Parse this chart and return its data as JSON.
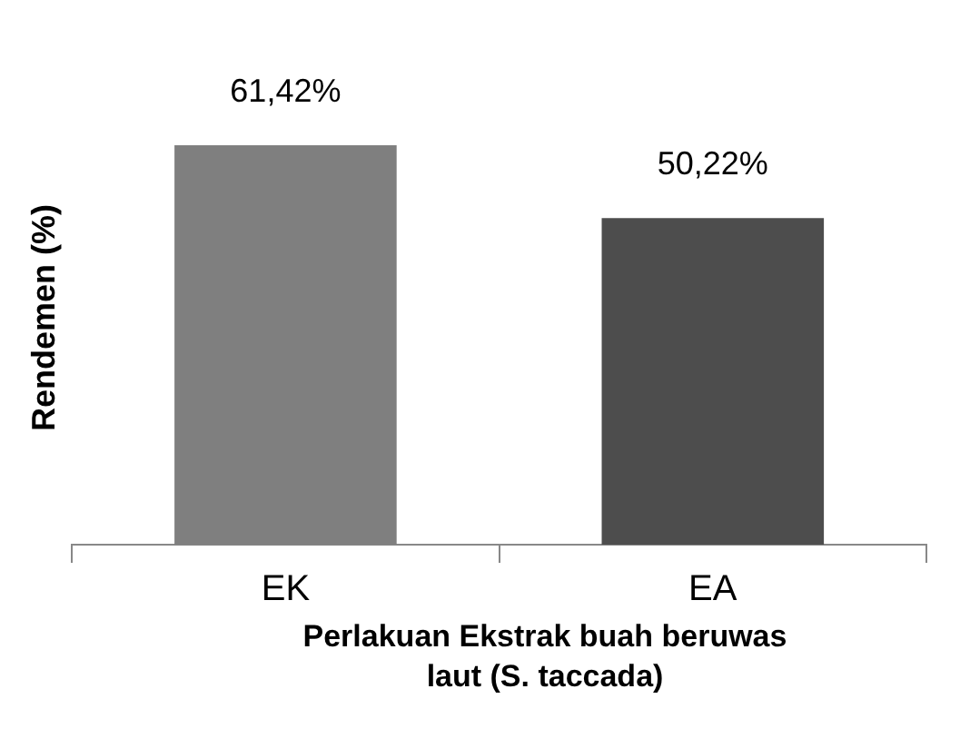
{
  "chart_data": {
    "type": "bar",
    "categories": [
      "EK",
      "EA"
    ],
    "values": [
      61.42,
      50.22
    ],
    "colors": [
      "#7f7f7f",
      "#4d4d4d"
    ],
    "value_labels": [
      "61,42%",
      "50,22%"
    ],
    "ylabel": "Rendemen (%)",
    "xlabel": "Perlakuan Ekstrak buah beruwas laut (S. taccada)",
    "grid": false,
    "legend": false
  }
}
